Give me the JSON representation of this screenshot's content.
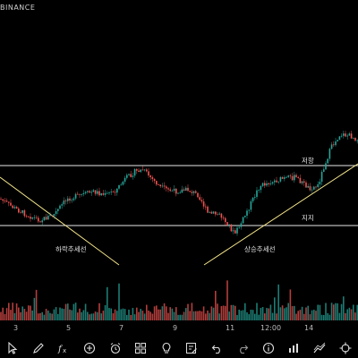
{
  "chart": {
    "exchange_label": "BINANCE",
    "annotations": {
      "down_trend": "하락추세선",
      "up_trend": "상승추세선",
      "resistance": "저항",
      "support": "지지"
    },
    "x_ticks": [
      "3",
      "5",
      "7",
      "9",
      "11",
      "12:00",
      "14"
    ],
    "colors": {
      "up": "#26a69a",
      "down": "#ef5350",
      "resistance_line": "#e8e8e8",
      "trendline": "#f5e68c",
      "background": "#000000"
    }
  },
  "toolbar": {
    "tools": [
      {
        "name": "cursor-icon"
      },
      {
        "name": "pencil-icon"
      },
      {
        "name": "fx-icon"
      },
      {
        "name": "add-icon"
      },
      {
        "name": "alarm-icon"
      },
      {
        "name": "grid-icon"
      },
      {
        "name": "lightbulb-icon"
      },
      {
        "name": "edit-note-icon"
      },
      {
        "name": "undo-icon"
      },
      {
        "name": "redo-icon"
      },
      {
        "name": "info-icon"
      },
      {
        "name": "chart-type-icon"
      },
      {
        "name": "draw-tool-icon"
      },
      {
        "name": "crosshair-icon"
      }
    ]
  }
}
